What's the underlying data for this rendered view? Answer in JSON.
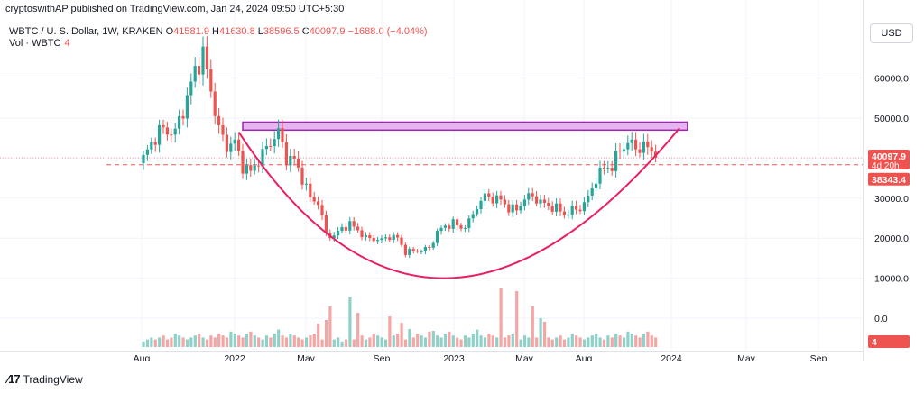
{
  "header": {
    "published": "cryptoswithAP published on TradingView.com, Jan 24, 2024 09:50 UTC+5:30"
  },
  "legend": {
    "symbol": "WBTC / U. S. Dollar, 1W, KRAKEN",
    "open_label": "O",
    "open": "41581.9",
    "high_label": "H",
    "high": "41630.8",
    "low_label": "L",
    "low": "38596.5",
    "close_label": "C",
    "close": "40097.9",
    "change": "−1688.0 (−4.04%)",
    "vol_label": "Vol · WBTC",
    "vol_value": "4"
  },
  "currency_button": "USD",
  "footer": {
    "brand": "TradingView",
    "logo_icon": "tradingview-logo-icon"
  },
  "price_badges": {
    "last": "40097.9",
    "countdown": "4d 20h",
    "level": "38343.4",
    "volume": "4"
  },
  "colors": {
    "up": "#26a69a",
    "down": "#ef5350",
    "vol_up": "#8fd0c8",
    "vol_down": "#f4a6a4",
    "zone_fill": "#e7b3f0",
    "zone_stroke": "#9c27b0",
    "curve": "#e91e63",
    "level_line": "#ef5350"
  },
  "chart_data": {
    "type": "candlestick",
    "y_axis": {
      "ticks": [
        0,
        10000,
        20000,
        30000,
        40000,
        50000,
        60000
      ],
      "tick_labels": [
        "0.0",
        "10000.0",
        "20000.0",
        "30000.0",
        "40000.0",
        "50000.0",
        "60000.0"
      ]
    },
    "x_axis": {
      "tick_labels": [
        "Aug",
        "2022",
        "May",
        "Sep",
        "2023",
        "May",
        "Aug",
        "2024",
        "May",
        "Sep"
      ]
    },
    "grid": true,
    "legend_position": "top-left",
    "anchors": [
      [
        0,
        40000
      ],
      [
        4,
        47000
      ],
      [
        8,
        46500
      ],
      [
        11,
        55000
      ],
      [
        13,
        62000
      ],
      [
        15,
        66000
      ],
      [
        17,
        57000
      ],
      [
        19,
        47000
      ],
      [
        21,
        43000
      ],
      [
        23,
        44000
      ],
      [
        25,
        38000
      ],
      [
        27,
        36500
      ],
      [
        29,
        39500
      ],
      [
        32,
        44000
      ],
      [
        34,
        46500
      ],
      [
        36,
        40000
      ],
      [
        38,
        39500
      ],
      [
        40,
        35000
      ],
      [
        42,
        30000
      ],
      [
        44,
        29000
      ],
      [
        46,
        21000
      ],
      [
        48,
        20500
      ],
      [
        50,
        22500
      ],
      [
        52,
        23500
      ],
      [
        54,
        22000
      ],
      [
        56,
        20000
      ],
      [
        58,
        19800
      ],
      [
        60,
        19500
      ],
      [
        62,
        20500
      ],
      [
        64,
        20000
      ],
      [
        66,
        16500
      ],
      [
        68,
        16800
      ],
      [
        70,
        17000
      ],
      [
        72,
        17500
      ],
      [
        74,
        21500
      ],
      [
        76,
        23000
      ],
      [
        78,
        23800
      ],
      [
        80,
        22500
      ],
      [
        82,
        24000
      ],
      [
        84,
        28000
      ],
      [
        86,
        30500
      ],
      [
        88,
        30000
      ],
      [
        90,
        29500
      ],
      [
        92,
        27500
      ],
      [
        94,
        27000
      ],
      [
        96,
        30000
      ],
      [
        98,
        30500
      ],
      [
        100,
        29000
      ],
      [
        102,
        28000
      ],
      [
        104,
        27500
      ],
      [
        106,
        26000
      ],
      [
        108,
        27000
      ],
      [
        110,
        27500
      ],
      [
        112,
        30000
      ],
      [
        114,
        35000
      ],
      [
        116,
        37500
      ],
      [
        118,
        38000
      ],
      [
        120,
        42000
      ],
      [
        122,
        44000
      ],
      [
        124,
        42500
      ],
      [
        126,
        43000
      ],
      [
        128,
        41800
      ],
      [
        129,
        40098
      ]
    ],
    "volume_levels": [
      1,
      2,
      3,
      2,
      3,
      4,
      2,
      3,
      5,
      4,
      3,
      2,
      3,
      4,
      5,
      3,
      2,
      4,
      3,
      5,
      4,
      3,
      6,
      5,
      4,
      3,
      5,
      6,
      4,
      3,
      2,
      4,
      3,
      5,
      7,
      4,
      3,
      5,
      4,
      3,
      2,
      3,
      4,
      5,
      3,
      2,
      4,
      3,
      2,
      3
    ],
    "volume_tall": [
      [
        47,
        45
      ],
      [
        54,
        38
      ],
      [
        52,
        55
      ],
      [
        46,
        30
      ],
      [
        44,
        26
      ],
      [
        62,
        34
      ],
      [
        65,
        27
      ],
      [
        90,
        65
      ],
      [
        94,
        62
      ],
      [
        98,
        45
      ],
      [
        100,
        32
      ],
      [
        101,
        28
      ],
      [
        67,
        20
      ],
      [
        73,
        18
      ]
    ],
    "resistance_zone": {
      "y_low": 47000,
      "y_high": 49000,
      "x_start": 25,
      "x_end": 137
    },
    "support_level": 38343.4,
    "last_price": 40097.9,
    "cup_curve": {
      "start": [
        24,
        46500
      ],
      "bottom": [
        76,
        10000
      ],
      "end": [
        135,
        47500
      ]
    }
  }
}
